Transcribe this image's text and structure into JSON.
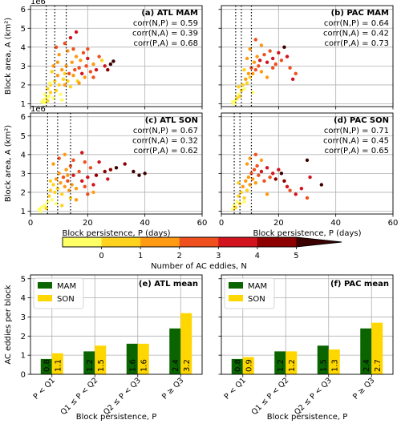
{
  "colors": {
    "n_scale": [
      "#ffff66",
      "#ffd21e",
      "#ff9a14",
      "#f0501e",
      "#d2141e",
      "#8c0000",
      "#3c0000"
    ],
    "mam": "#0a6400",
    "son": "#ffd700",
    "threshold_line": "#000000"
  },
  "chart_data": [
    {
      "id": "a",
      "type": "scatter",
      "panel_label": "(a) ATL MAM",
      "exponent_label": "1e6",
      "ylabel": "Block area, A (km²)",
      "xlabel": "",
      "xlim": [
        0,
        60
      ],
      "ylim": [
        0.85,
        6.2
      ],
      "xticks": [
        "0",
        "20",
        "40",
        "60"
      ],
      "show_xticklabels": false,
      "yticks": [
        "1",
        "2",
        "3",
        "4",
        "5",
        "6"
      ],
      "show_yticklabels": true,
      "correlations": [
        "corr(N,P) = 0.59",
        "corr(N,A) = 0.39",
        "corr(P,A) = 0.68"
      ],
      "quartile_lines": [
        5.5,
        8.5,
        12.5
      ],
      "points": [
        [
          4,
          1.1,
          0
        ],
        [
          4.5,
          1.2,
          0
        ],
        [
          5,
          1.05,
          0
        ],
        [
          5.5,
          1.3,
          0
        ],
        [
          6,
          1.15,
          1
        ],
        [
          6.5,
          1.4,
          0
        ],
        [
          7,
          1.6,
          1
        ],
        [
          5,
          1.5,
          0
        ],
        [
          6,
          1.8,
          1
        ],
        [
          7,
          2.0,
          1
        ],
        [
          8,
          1.3,
          0
        ],
        [
          8.5,
          2.2,
          1
        ],
        [
          9,
          1.7,
          1
        ],
        [
          9.5,
          2.5,
          2
        ],
        [
          10,
          2.0,
          1
        ],
        [
          10.5,
          1.5,
          0
        ],
        [
          11,
          2.8,
          2
        ],
        [
          11.5,
          2.3,
          1
        ],
        [
          12,
          2.0,
          2
        ],
        [
          12.5,
          3.0,
          2
        ],
        [
          13,
          2.2,
          1
        ],
        [
          13.5,
          2.6,
          3
        ],
        [
          14,
          1.9,
          1
        ],
        [
          14.5,
          3.2,
          2
        ],
        [
          15,
          2.5,
          2
        ],
        [
          15.5,
          2.8,
          3
        ],
        [
          16,
          3.5,
          2
        ],
        [
          16.5,
          2.2,
          1
        ],
        [
          17,
          2.9,
          3
        ],
        [
          17.5,
          3.3,
          2
        ],
        [
          18,
          2.6,
          4
        ],
        [
          18.5,
          3.7,
          3
        ],
        [
          19,
          2.4,
          2
        ],
        [
          19.5,
          3.0,
          3
        ],
        [
          20,
          3.4,
          4
        ],
        [
          21,
          2.7,
          3
        ],
        [
          22,
          3.1,
          2
        ],
        [
          23,
          2.8,
          4
        ],
        [
          24,
          3.5,
          3
        ],
        [
          25,
          3.3,
          1
        ],
        [
          26,
          3.0,
          4
        ],
        [
          27,
          2.8,
          5
        ],
        [
          28,
          3.1,
          6
        ],
        [
          29,
          3.25,
          6
        ],
        [
          8,
          3.0,
          2
        ],
        [
          9,
          4.0,
          3
        ],
        [
          10,
          3.6,
          2
        ],
        [
          12,
          4.2,
          3
        ],
        [
          13,
          3.8,
          2
        ],
        [
          11,
          1.2,
          0
        ],
        [
          7.5,
          2.7,
          1
        ],
        [
          6.8,
          2.1,
          0
        ],
        [
          14,
          4.5,
          4
        ],
        [
          15,
          3.9,
          3
        ],
        [
          16,
          4.8,
          4
        ],
        [
          20,
          3.9,
          3
        ],
        [
          12,
          2.6,
          1
        ],
        [
          9.5,
          3.2,
          2
        ],
        [
          17,
          2.1,
          2
        ],
        [
          22,
          2.4,
          3
        ]
      ]
    },
    {
      "id": "b",
      "type": "scatter",
      "panel_label": "(b) PAC MAM",
      "exponent_label": "",
      "ylabel": "",
      "xlabel": "",
      "xlim": [
        0,
        60
      ],
      "ylim": [
        0.85,
        6.2
      ],
      "xticks": [
        "0",
        "20",
        "40",
        "60"
      ],
      "show_xticklabels": false,
      "yticks": [
        "1",
        "2",
        "3",
        "4",
        "5",
        "6"
      ],
      "show_yticklabels": false,
      "correlations": [
        "corr(N,P) = 0.64",
        "corr(N,A) = 0.42",
        "corr(P,A) = 0.73"
      ],
      "quartile_lines": [
        5.0,
        7.0,
        10.5
      ],
      "points": [
        [
          4,
          1.1,
          0
        ],
        [
          4.5,
          1.0,
          0
        ],
        [
          5,
          1.2,
          0
        ],
        [
          5.5,
          1.3,
          1
        ],
        [
          6,
          1.5,
          0
        ],
        [
          6.5,
          1.4,
          1
        ],
        [
          7,
          1.7,
          1
        ],
        [
          7.5,
          2.0,
          1
        ],
        [
          8,
          1.8,
          0
        ],
        [
          8.5,
          2.3,
          2
        ],
        [
          9,
          2.1,
          1
        ],
        [
          9.5,
          2.6,
          2
        ],
        [
          10,
          2.4,
          1
        ],
        [
          10.5,
          2.9,
          3
        ],
        [
          11,
          2.6,
          2
        ],
        [
          11.5,
          3.2,
          2
        ],
        [
          12,
          2.8,
          3
        ],
        [
          12.5,
          3.5,
          2
        ],
        [
          13,
          3.0,
          3
        ],
        [
          13.5,
          3.3,
          4
        ],
        [
          14,
          2.7,
          2
        ],
        [
          15,
          3.6,
          3
        ],
        [
          16,
          3.2,
          4
        ],
        [
          17,
          3.8,
          3
        ],
        [
          18,
          3.4,
          4
        ],
        [
          19,
          3.1,
          3
        ],
        [
          20,
          3.7,
          4
        ],
        [
          21,
          3.3,
          3
        ],
        [
          22,
          4.0,
          6
        ],
        [
          23,
          3.5,
          4
        ],
        [
          24,
          2.9,
          3
        ],
        [
          25,
          2.3,
          4
        ],
        [
          26,
          2.6,
          3
        ],
        [
          10,
          3.9,
          2
        ],
        [
          12,
          4.4,
          3
        ],
        [
          14,
          4.1,
          2
        ],
        [
          8,
          2.8,
          1
        ],
        [
          6,
          1.9,
          1
        ],
        [
          11,
          1.6,
          0
        ],
        [
          16,
          2.4,
          2
        ],
        [
          18,
          2.9,
          3
        ],
        [
          9,
          3.4,
          2
        ]
      ]
    },
    {
      "id": "c",
      "type": "scatter",
      "panel_label": "(c) ATL SON",
      "exponent_label": "1e6",
      "ylabel": "Block area, A (km²)",
      "xlabel": "Block persistence, P (days)",
      "xlim": [
        0,
        60
      ],
      "ylim": [
        0.85,
        6.2
      ],
      "xticks": [
        "0",
        "20",
        "40",
        "60"
      ],
      "show_xticklabels": true,
      "yticks": [
        "1",
        "2",
        "3",
        "4",
        "5",
        "6"
      ],
      "show_yticklabels": true,
      "correlations": [
        "corr(N,P) = 0.67",
        "corr(N,A) = 0.32",
        "corr(P,A) = 0.62"
      ],
      "quartile_lines": [
        6.0,
        9.5,
        14.0
      ],
      "points": [
        [
          3,
          1.1,
          0
        ],
        [
          3.5,
          1.0,
          0
        ],
        [
          4,
          1.2,
          0
        ],
        [
          5,
          1.3,
          0
        ],
        [
          5.5,
          1.15,
          1
        ],
        [
          6,
          1.5,
          0
        ],
        [
          6.5,
          1.8,
          1
        ],
        [
          7,
          2.1,
          1
        ],
        [
          7.5,
          1.6,
          0
        ],
        [
          8,
          2.4,
          1
        ],
        [
          8.5,
          2.0,
          1
        ],
        [
          9,
          2.7,
          2
        ],
        [
          9.5,
          2.2,
          1
        ],
        [
          10,
          3.0,
          2
        ],
        [
          10.5,
          2.5,
          2
        ],
        [
          11,
          1.9,
          1
        ],
        [
          11.5,
          2.8,
          3
        ],
        [
          12,
          2.3,
          2
        ],
        [
          12.5,
          3.2,
          2
        ],
        [
          13,
          2.6,
          3
        ],
        [
          13.5,
          2.1,
          2
        ],
        [
          14,
          3.4,
          3
        ],
        [
          14.5,
          2.4,
          2
        ],
        [
          15,
          2.9,
          4
        ],
        [
          16,
          2.2,
          2
        ],
        [
          17,
          3.1,
          3
        ],
        [
          18,
          2.6,
          4
        ],
        [
          19,
          2.3,
          3
        ],
        [
          20,
          2.8,
          4
        ],
        [
          21,
          3.3,
          3
        ],
        [
          22,
          2.4,
          4
        ],
        [
          23,
          2.9,
          5
        ],
        [
          24,
          3.6,
          4
        ],
        [
          26,
          3.1,
          5
        ],
        [
          27,
          2.7,
          4
        ],
        [
          28,
          3.2,
          5
        ],
        [
          30,
          3.3,
          6
        ],
        [
          33,
          3.5,
          5
        ],
        [
          36,
          3.1,
          6
        ],
        [
          38,
          2.9,
          6
        ],
        [
          40,
          3.0,
          6
        ],
        [
          8,
          3.5,
          2
        ],
        [
          10,
          3.8,
          3
        ],
        [
          12,
          4.0,
          2
        ],
        [
          15,
          3.7,
          3
        ],
        [
          18,
          4.1,
          4
        ],
        [
          19,
          3.6,
          3
        ],
        [
          9,
          1.4,
          0
        ],
        [
          11,
          1.3,
          1
        ],
        [
          16,
          1.6,
          2
        ],
        [
          20,
          1.9,
          3
        ],
        [
          22,
          2.0,
          2
        ],
        [
          14,
          1.7,
          1
        ],
        [
          13,
          2.9,
          2
        ],
        [
          7,
          2.6,
          1
        ]
      ]
    },
    {
      "id": "d",
      "type": "scatter",
      "panel_label": "(d) PAC SON",
      "exponent_label": "",
      "ylabel": "",
      "xlabel": "Block persistence, P (days)",
      "xlim": [
        0,
        60
      ],
      "ylim": [
        0.85,
        6.2
      ],
      "xticks": [
        "0",
        "20",
        "40",
        "60"
      ],
      "show_xticklabels": true,
      "yticks": [
        "1",
        "2",
        "3",
        "4",
        "5",
        "6"
      ],
      "show_yticklabels": false,
      "correlations": [
        "corr(N,P) = 0.71",
        "corr(N,A) = 0.45",
        "corr(P,A) = 0.65"
      ],
      "quartile_lines": [
        4.5,
        6.5,
        10.5
      ],
      "points": [
        [
          4,
          1.1,
          0
        ],
        [
          4.5,
          1.3,
          0
        ],
        [
          5,
          1.2,
          1
        ],
        [
          5.5,
          1.5,
          0
        ],
        [
          6,
          1.8,
          1
        ],
        [
          6.5,
          1.4,
          1
        ],
        [
          7,
          2.0,
          1
        ],
        [
          7.5,
          2.3,
          2
        ],
        [
          8,
          1.7,
          1
        ],
        [
          8.5,
          2.6,
          2
        ],
        [
          9,
          2.1,
          1
        ],
        [
          9.5,
          2.8,
          2
        ],
        [
          10,
          2.4,
          2
        ],
        [
          10.5,
          3.0,
          3
        ],
        [
          11,
          2.7,
          2
        ],
        [
          11.5,
          3.2,
          3
        ],
        [
          12,
          2.5,
          2
        ],
        [
          12.5,
          3.4,
          3
        ],
        [
          13,
          2.9,
          3
        ],
        [
          14,
          3.1,
          4
        ],
        [
          15,
          2.6,
          3
        ],
        [
          16,
          3.3,
          4
        ],
        [
          17,
          2.8,
          3
        ],
        [
          18,
          3.0,
          4
        ],
        [
          19,
          2.7,
          5
        ],
        [
          20,
          3.2,
          4
        ],
        [
          21,
          3.0,
          6
        ],
        [
          22,
          2.6,
          5
        ],
        [
          23,
          2.3,
          4
        ],
        [
          24,
          2.1,
          3
        ],
        [
          26,
          1.9,
          4
        ],
        [
          28,
          2.2,
          4
        ],
        [
          30,
          3.7,
          6
        ],
        [
          35,
          2.4,
          6
        ],
        [
          30,
          1.7,
          3
        ],
        [
          31,
          2.8,
          4
        ],
        [
          10,
          3.8,
          2
        ],
        [
          12,
          4.0,
          3
        ],
        [
          14,
          3.7,
          2
        ],
        [
          9,
          3.5,
          2
        ],
        [
          6,
          2.5,
          1
        ],
        [
          8,
          1.5,
          0
        ],
        [
          16,
          1.9,
          2
        ]
      ]
    },
    {
      "id": "e",
      "type": "bar",
      "panel_label": "(e) ATL mean",
      "ylabel": "AC eddies per block",
      "xlabel": "Block persistence, P",
      "ylim": [
        0,
        5.2
      ],
      "yticks": [
        "0",
        "1",
        "2",
        "3",
        "4",
        "5"
      ],
      "show_yticklabels": true,
      "categories": [
        "P < Q1",
        "Q1 ≤ P < Q2",
        "Q2 ≤ P < Q3",
        "P ≥ Q3"
      ],
      "series": [
        {
          "name": "MAM",
          "values": [
            0.8,
            1.2,
            1.6,
            2.4
          ],
          "labels": [
            "0.8",
            "1.2",
            "1.6",
            "2.4"
          ]
        },
        {
          "name": "SON",
          "values": [
            1.1,
            1.5,
            1.6,
            3.2
          ],
          "labels": [
            "1.1",
            "1.5",
            "1.6",
            "3.2"
          ]
        }
      ],
      "legend_position": "top-left"
    },
    {
      "id": "f",
      "type": "bar",
      "panel_label": "(f) PAC mean",
      "ylabel": "",
      "xlabel": "Block persistence, P",
      "ylim": [
        0,
        5.2
      ],
      "yticks": [
        "0",
        "1",
        "2",
        "3",
        "4",
        "5"
      ],
      "show_yticklabels": false,
      "categories": [
        "P < Q1",
        "Q1 ≤ P < Q2",
        "Q2 ≤ P < Q3",
        "P ≥ Q3"
      ],
      "series": [
        {
          "name": "MAM",
          "values": [
            0.8,
            1.2,
            1.5,
            2.4
          ],
          "labels": [
            "0.8",
            "1.2",
            "1.5",
            "2.4"
          ]
        },
        {
          "name": "SON",
          "values": [
            0.9,
            1.2,
            1.3,
            2.7
          ],
          "labels": [
            "0.9",
            "1.2",
            "1.3",
            "2.7"
          ]
        }
      ],
      "legend_position": "top-left"
    }
  ],
  "colorbar": {
    "ticks": [
      "0",
      "1",
      "2",
      "3",
      "4",
      "5"
    ],
    "label": "Number of AC eddies, N"
  }
}
